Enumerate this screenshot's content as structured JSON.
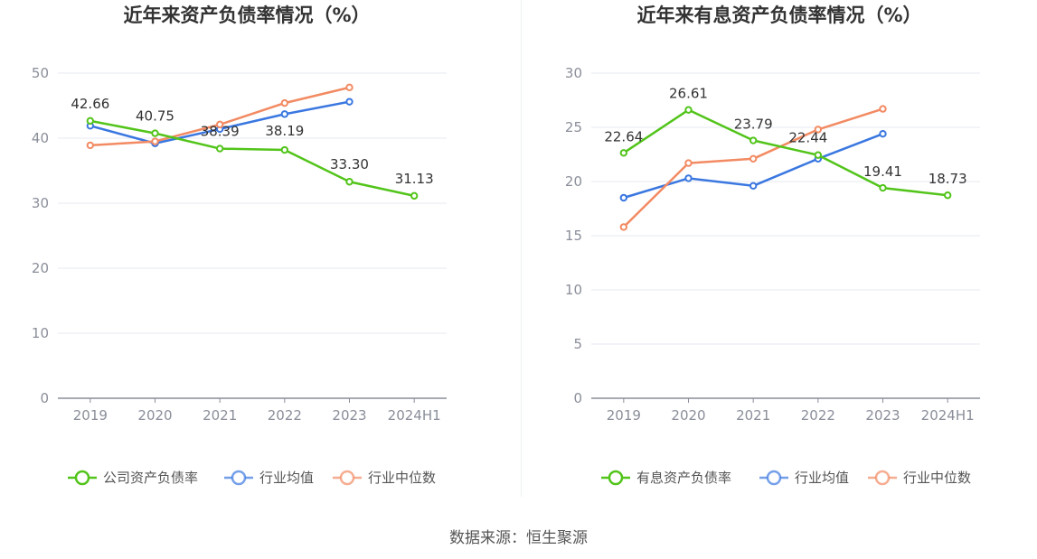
{
  "chart_data": [
    {
      "type": "line",
      "title": "近年来资产负债率情况（%）",
      "categories": [
        "2019",
        "2020",
        "2021",
        "2022",
        "2023",
        "2024H1"
      ],
      "yticks": [
        "0",
        "10",
        "20",
        "30",
        "40",
        "50"
      ],
      "ylim": [
        0,
        50
      ],
      "grid": true,
      "legend_position": "bottom",
      "series": [
        {
          "name": "公司资产负债率",
          "color": "#52c41a",
          "labeled": true,
          "values": [
            42.66,
            40.75,
            38.39,
            38.19,
            33.3,
            31.13
          ],
          "labels": [
            "42.66",
            "40.75",
            "38.39",
            "38.19",
            "33.30",
            "31.13"
          ]
        },
        {
          "name": "行业均值",
          "color": "#3a77e0",
          "labeled": false,
          "values": [
            41.9,
            39.2,
            41.4,
            43.7,
            45.6,
            null
          ]
        },
        {
          "name": "行业中位数",
          "color": "#f28a62",
          "labeled": false,
          "values": [
            38.9,
            39.5,
            42.1,
            45.4,
            47.8,
            null
          ]
        }
      ]
    },
    {
      "type": "line",
      "title": "近年来有息资产负债率情况（%）",
      "categories": [
        "2019",
        "2020",
        "2021",
        "2022",
        "2023",
        "2024H1"
      ],
      "yticks": [
        "0",
        "5",
        "10",
        "15",
        "20",
        "25",
        "30"
      ],
      "ylim": [
        0,
        30
      ],
      "grid": true,
      "legend_position": "bottom",
      "series": [
        {
          "name": "有息资产负债率",
          "color": "#52c41a",
          "labeled": true,
          "values": [
            22.64,
            26.61,
            23.79,
            22.44,
            19.41,
            18.73
          ],
          "labels": [
            "22.64",
            "26.61",
            "23.79",
            "22.44",
            "19.41",
            "18.73"
          ]
        },
        {
          "name": "行业均值",
          "color": "#3a77e0",
          "labeled": false,
          "values": [
            18.5,
            20.3,
            19.6,
            22.1,
            24.4,
            null
          ]
        },
        {
          "name": "行业中位数",
          "color": "#f28a62",
          "labeled": false,
          "values": [
            15.8,
            21.7,
            22.1,
            24.8,
            26.7,
            null
          ]
        }
      ]
    }
  ],
  "source": "数据来源：恒生聚源",
  "colors": {
    "grid": "#e6e9f2",
    "axis": "#8a8e99"
  }
}
